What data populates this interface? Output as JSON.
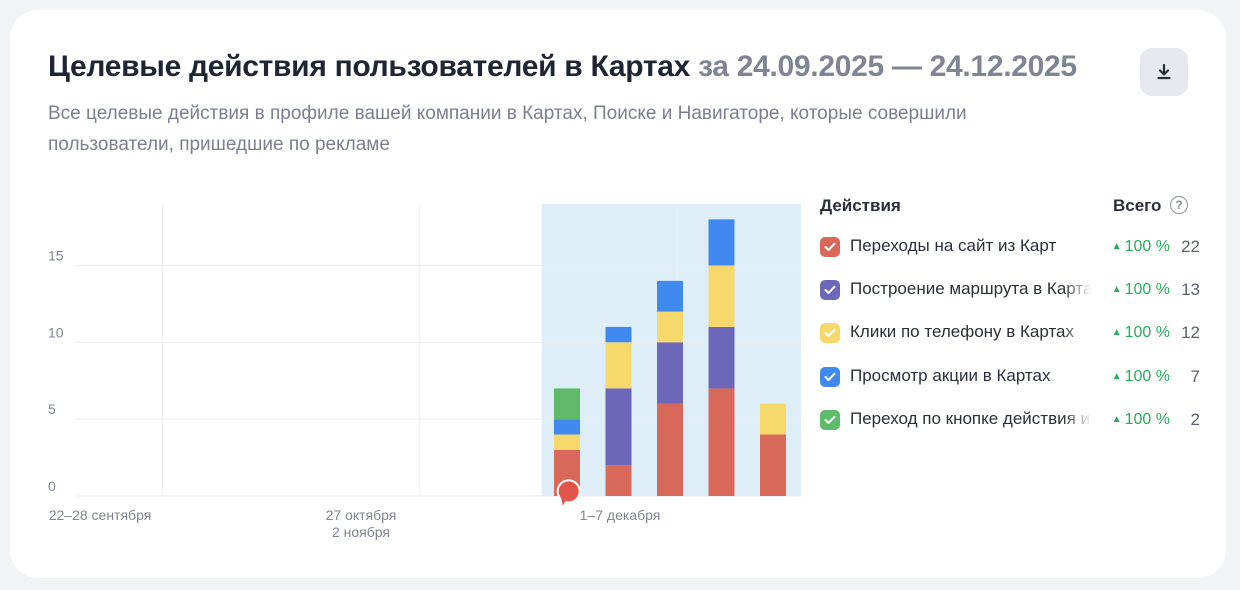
{
  "header": {
    "title": "Целевые действия пользователей в Картах",
    "period": "за 24.09.2025 — 24.12.2025",
    "subtitle": "Все целевые действия в профиле вашей компании в Картах, Поиске и Навигаторе, которые совершили пользователи, пришедшие по рекламе",
    "download_icon": "download-icon"
  },
  "legend": {
    "header_actions": "Действия",
    "header_total": "Всего",
    "help_icon": "question-circle-icon",
    "items": [
      {
        "label": "Переходы на сайт из Карт",
        "change": "100 %",
        "total": "22",
        "color": "#d7685a"
      },
      {
        "label": "Построение маршрута в Картах",
        "change": "100 %",
        "total": "13",
        "color": "#6c67b9"
      },
      {
        "label": "Клики по телефону в Картах",
        "change": "100 %",
        "total": "12",
        "color": "#f7d96b"
      },
      {
        "label": "Просмотр акции в Картах",
        "change": "100 %",
        "total": "7",
        "color": "#3f89ef"
      },
      {
        "label": "Переход по кнопке действия из Карт",
        "change": "100 %",
        "total": "2",
        "color": "#5fba6a"
      }
    ]
  },
  "chart_data": {
    "type": "bar",
    "stacked": true,
    "ylim": [
      0,
      19
    ],
    "y_ticks": [
      0,
      5,
      10,
      15
    ],
    "x_tick_labels": [
      "22–28 сентября",
      "27 октября\n2 ноября",
      "1–7 декабря"
    ],
    "highlight_period_start_week": 8,
    "grid": true,
    "legend_position": "right",
    "series": [
      {
        "name": "Переходы на сайт из Карт",
        "color": "#d7685a",
        "values": [
          0,
          0,
          0,
          0,
          0,
          0,
          0,
          0,
          0,
          3,
          2,
          6,
          7,
          4
        ]
      },
      {
        "name": "Построение маршрута в Картах",
        "color": "#6c67b9",
        "values": [
          0,
          0,
          0,
          0,
          0,
          0,
          0,
          0,
          0,
          0,
          5,
          4,
          4,
          0
        ]
      },
      {
        "name": "Клики по телефону в Картах",
        "color": "#f7d96b",
        "values": [
          0,
          0,
          0,
          0,
          0,
          0,
          0,
          0,
          0,
          1,
          3,
          2,
          4,
          2
        ]
      },
      {
        "name": "Просмотр акции в Картах",
        "color": "#3f89ef",
        "values": [
          0,
          0,
          0,
          0,
          0,
          0,
          0,
          0,
          0,
          1,
          1,
          2,
          3,
          0
        ]
      },
      {
        "name": "Переход по кнопке действия из Карт",
        "color": "#5fba6a",
        "values": [
          0,
          0,
          0,
          0,
          0,
          0,
          0,
          0,
          0,
          2,
          0,
          0,
          0,
          0
        ]
      }
    ],
    "marker_icon": "comment-bubble-icon"
  }
}
